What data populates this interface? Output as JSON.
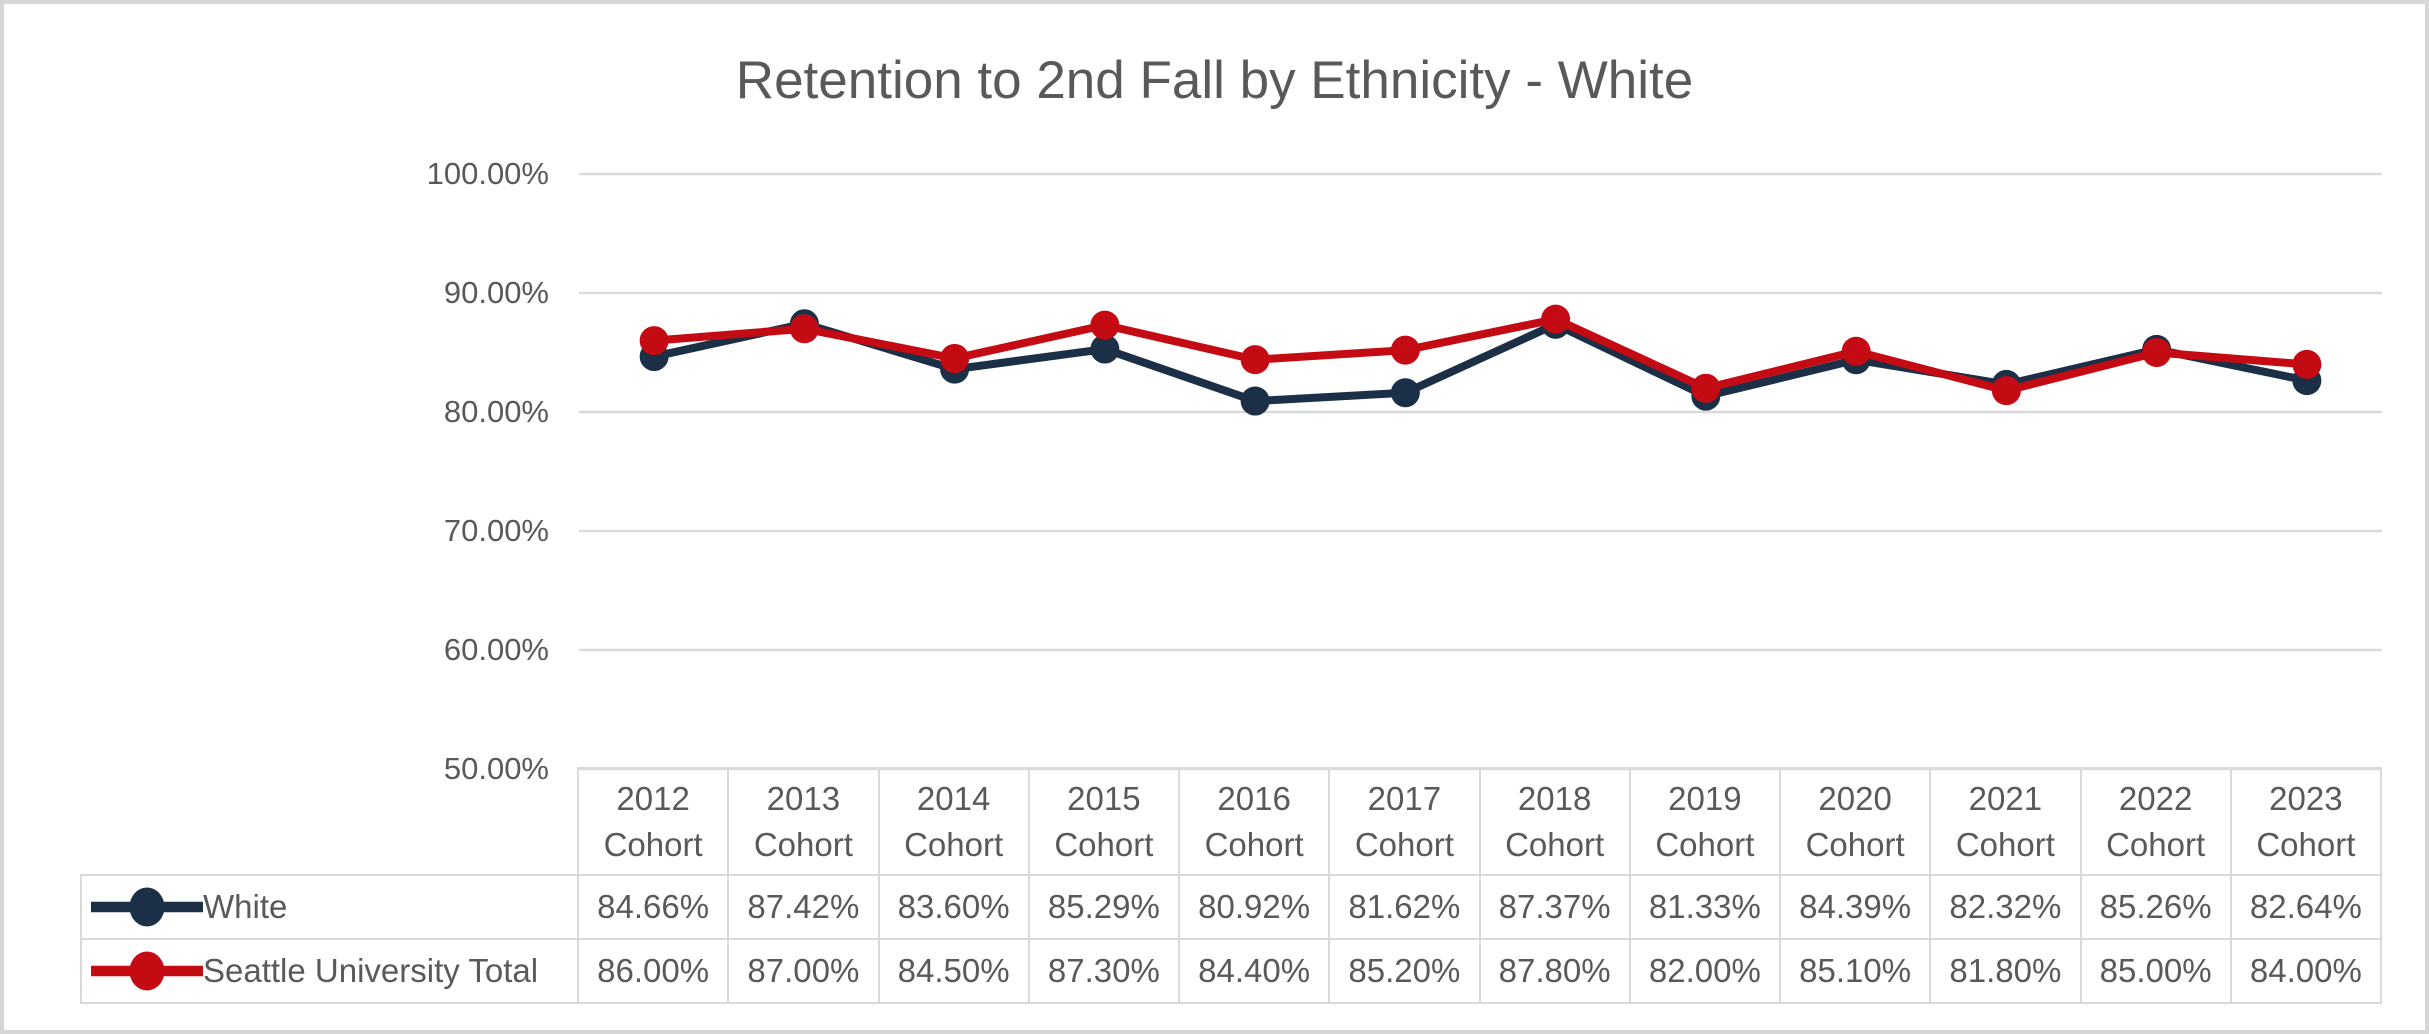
{
  "title": "Retention to 2nd Fall by Ethnicity - White",
  "y_axis": {
    "tick_labels": [
      "100.00%",
      "90.00%",
      "80.00%",
      "70.00%",
      "60.00%",
      "50.00%"
    ]
  },
  "chart_data": {
    "type": "line",
    "title": "Retention to 2nd Fall by Ethnicity - White",
    "categories": [
      "2012 Cohort",
      "2013 Cohort",
      "2014 Cohort",
      "2015 Cohort",
      "2016 Cohort",
      "2017 Cohort",
      "2018 Cohort",
      "2019 Cohort",
      "2020 Cohort",
      "2021 Cohort",
      "2022 Cohort",
      "2023 Cohort"
    ],
    "series": [
      {
        "name": "White",
        "color": "#1b2f46",
        "values": [
          84.66,
          87.42,
          83.6,
          85.29,
          80.92,
          81.62,
          87.37,
          81.33,
          84.39,
          82.32,
          85.26,
          82.64
        ]
      },
      {
        "name": "Seattle University Total",
        "color": "#c40a12",
        "values": [
          86.0,
          87.0,
          84.5,
          87.3,
          84.4,
          85.2,
          87.8,
          82.0,
          85.1,
          81.8,
          85.0,
          84.0
        ]
      }
    ],
    "ylim": [
      50,
      100
    ],
    "y_tick_step": 10,
    "value_format": "percent-2dp",
    "grid": true,
    "legend_position": "table-rows-left"
  },
  "colors": {
    "gridline": "#d9d9d9",
    "table_border": "#d9d9d9",
    "text": "#595959",
    "frame_border": "#d6d6d6",
    "white_series": "#1b2f46",
    "seattle_university_total_series": "#c40a12"
  }
}
